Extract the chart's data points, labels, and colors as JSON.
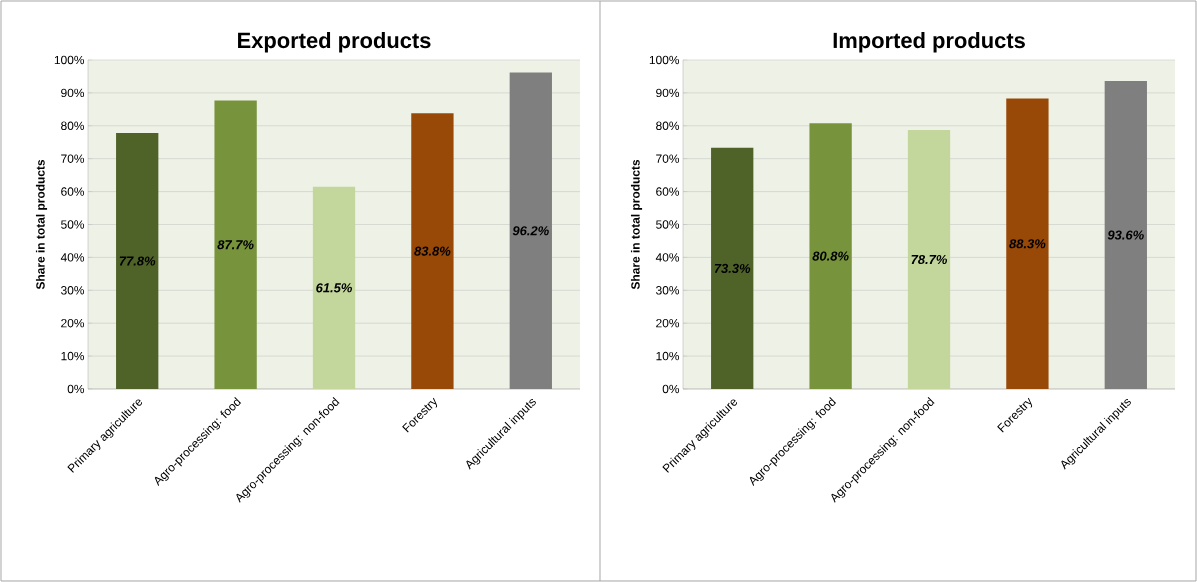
{
  "chart_data": [
    {
      "type": "bar",
      "title": "Exported products",
      "ylabel": "Share in total products",
      "categories": [
        "Primary agriculture",
        "Agro-processing: food",
        "Agro-processing: non-food",
        "Forestry",
        "Agricultural inputs"
      ],
      "values": [
        77.8,
        87.7,
        61.5,
        83.8,
        96.2
      ],
      "value_labels": [
        "77.8%",
        "87.7%",
        "61.5%",
        "83.8%",
        "96.2%"
      ],
      "colors": [
        "#4f6228",
        "#77933c",
        "#c3d69b",
        "#984807",
        "#7f7f7f"
      ],
      "ylim": [
        0,
        100
      ],
      "yticks": [
        {
          "value": 0,
          "label": "0%"
        },
        {
          "value": 10,
          "label": "10%"
        },
        {
          "value": 20,
          "label": "20%"
        },
        {
          "value": 30,
          "label": "30%"
        },
        {
          "value": 40,
          "label": "40%"
        },
        {
          "value": 50,
          "label": "50%"
        },
        {
          "value": 60,
          "label": "60%"
        },
        {
          "value": 70,
          "label": "70%"
        },
        {
          "value": 80,
          "label": "80%"
        },
        {
          "value": 90,
          "label": "90%"
        },
        {
          "value": 100,
          "label": "100%"
        }
      ],
      "grid": "y"
    },
    {
      "type": "bar",
      "title": "Imported products",
      "ylabel": "Share in total products",
      "categories": [
        "Primary agriculture",
        "Agro-processing: food",
        "Agro-processing: non-food",
        "Forestry",
        "Agricultural inputs"
      ],
      "values": [
        73.3,
        80.8,
        78.7,
        88.3,
        93.6
      ],
      "value_labels": [
        "73.3%",
        "80.8%",
        "78.7%",
        "88.3%",
        "93.6%"
      ],
      "colors": [
        "#4f6228",
        "#77933c",
        "#c3d69b",
        "#984807",
        "#7f7f7f"
      ],
      "ylim": [
        0,
        100
      ],
      "yticks": [
        {
          "value": 0,
          "label": "0%"
        },
        {
          "value": 10,
          "label": "10%"
        },
        {
          "value": 20,
          "label": "20%"
        },
        {
          "value": 30,
          "label": "30%"
        },
        {
          "value": 40,
          "label": "40%"
        },
        {
          "value": 50,
          "label": "50%"
        },
        {
          "value": 60,
          "label": "60%"
        },
        {
          "value": 70,
          "label": "70%"
        },
        {
          "value": 80,
          "label": "80%"
        },
        {
          "value": 90,
          "label": "90%"
        },
        {
          "value": 100,
          "label": "100%"
        }
      ],
      "grid": "y"
    }
  ]
}
